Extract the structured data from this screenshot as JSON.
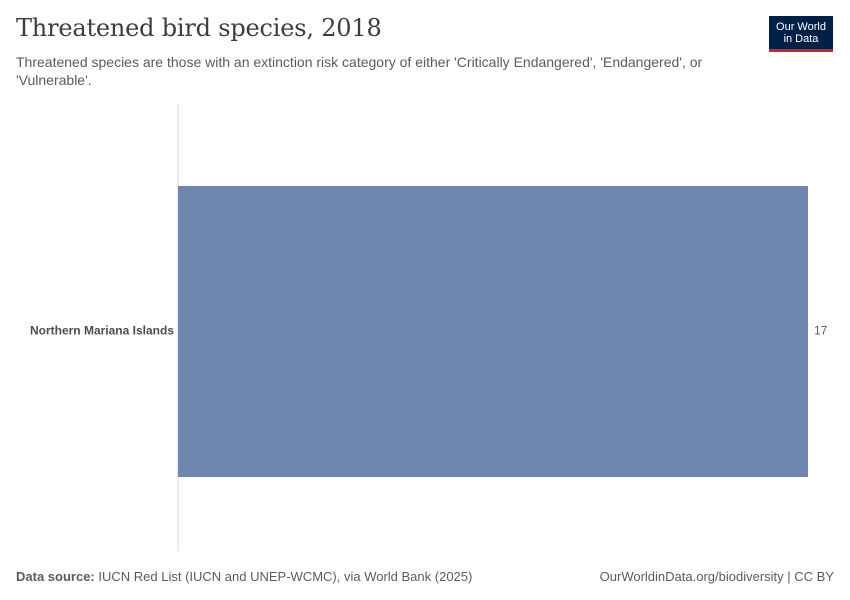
{
  "header": {
    "title": "Threatened bird species, 2018",
    "subtitle": "Threatened species are those with an extinction risk category of either 'Critically Endangered', 'Endangered', or 'Vulnerable'."
  },
  "logo": {
    "line1": "Our World",
    "line2": "in Data"
  },
  "footer": {
    "source_label": "Data source:",
    "source_text": "IUCN Red List (IUCN and UNEP-WCMC), via World Bank (2025)",
    "right_text": "OurWorldinData.org/biodiversity | CC BY"
  },
  "colors": {
    "bar": "#6f87ae",
    "axis": "#d9d9d9",
    "label": "#4d4d4d",
    "logo_bg": "#002147",
    "logo_accent": "#ce261e"
  },
  "chart_data": {
    "type": "bar",
    "orientation": "horizontal",
    "categories": [
      "Northern Mariana Islands"
    ],
    "values": [
      17
    ],
    "value_labels": [
      "17"
    ],
    "xlim": [
      0,
      17
    ],
    "grid": false
  }
}
